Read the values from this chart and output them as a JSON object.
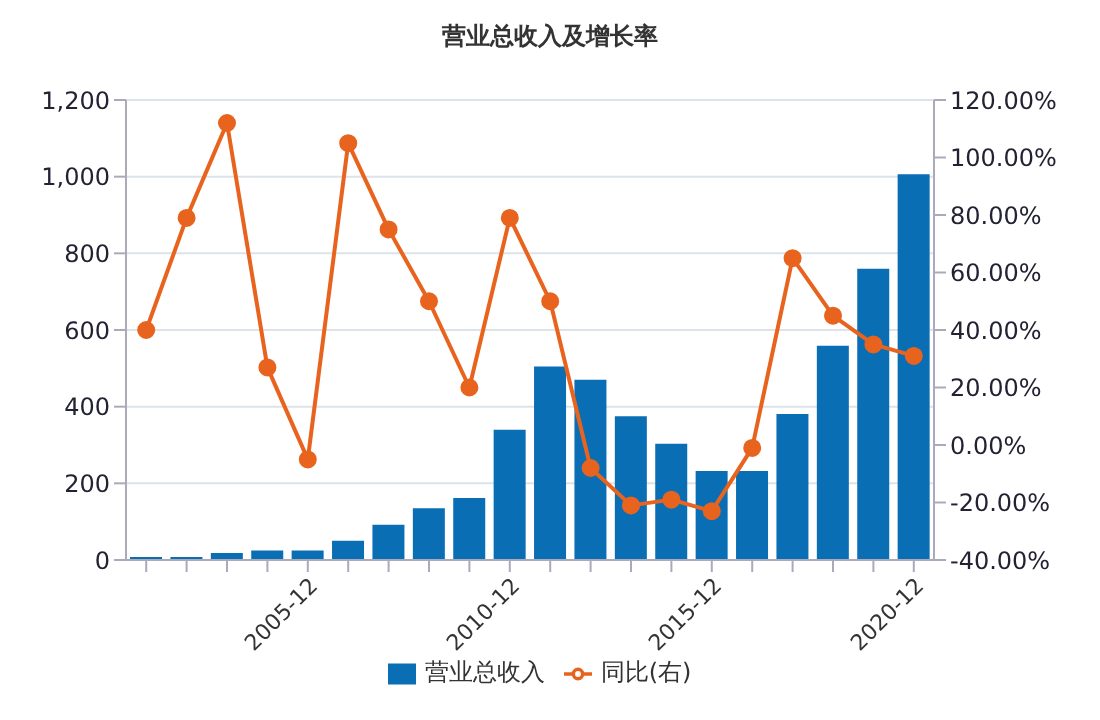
{
  "chart_data": {
    "type": "bar",
    "title": "营业总收入及增长率",
    "categories": [
      null,
      null,
      null,
      null,
      "2005-12",
      null,
      null,
      null,
      null,
      "2010-12",
      null,
      null,
      null,
      null,
      "2015-12",
      null,
      null,
      null,
      null,
      "2020-12"
    ],
    "series": [
      {
        "name": "营业总收入",
        "color": "#0a6eb4",
        "values": [
          8,
          8,
          18,
          25,
          25,
          50,
          92,
          135,
          162,
          340,
          505,
          470,
          375,
          303,
          232,
          232,
          381,
          559,
          760,
          1006
        ]
      },
      {
        "name": "同比(右)",
        "type": "line",
        "axis": "y2",
        "color": "#e8641e",
        "values": [
          40,
          79,
          112,
          27,
          -5,
          105,
          75,
          50,
          20,
          79,
          50,
          -8,
          -21,
          -19,
          -23,
          -1,
          65,
          45,
          35,
          31
        ]
      }
    ],
    "ylim": [
      0,
      1200
    ],
    "yticks": [
      0,
      200,
      400,
      600,
      800,
      {
        "value": 1000,
        "label": "1,000"
      },
      {
        "value": 1200,
        "label": "1,200"
      }
    ],
    "y2lim": [
      -40,
      120
    ],
    "y2ticks": [
      {
        "value": -40,
        "label": "-40.00%"
      },
      {
        "value": -20,
        "label": "-20.00%"
      },
      {
        "value": 0,
        "label": "0.00%"
      },
      {
        "value": 20,
        "label": "20.00%"
      },
      {
        "value": 40,
        "label": "40.00%"
      },
      {
        "value": 60,
        "label": "60.00%"
      },
      {
        "value": 80,
        "label": "80.00%"
      },
      {
        "value": 100,
        "label": "100.00%"
      },
      {
        "value": 120,
        "label": "120.00%"
      }
    ],
    "grid": "y",
    "legend": "bottom",
    "marker": "circle"
  }
}
